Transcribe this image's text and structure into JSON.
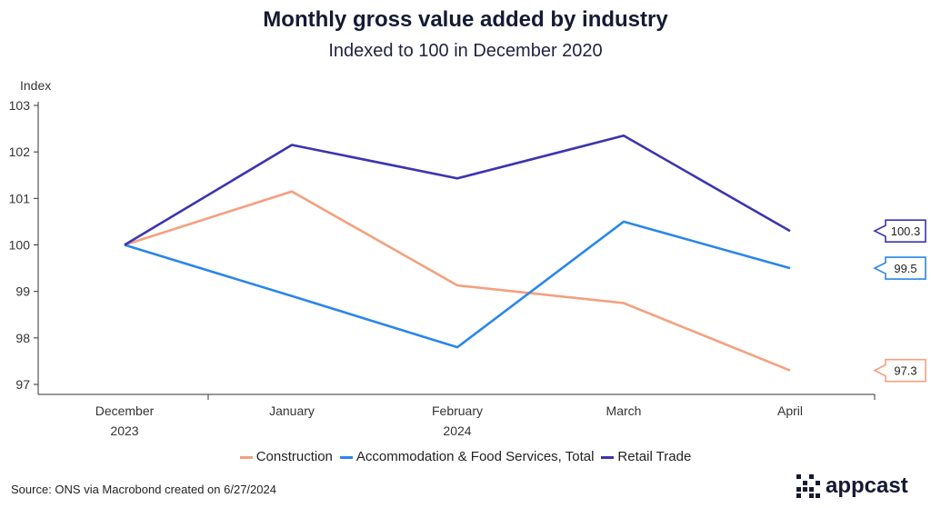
{
  "chart_data": {
    "type": "line",
    "title": "Monthly gross value added by industry",
    "subtitle": "Indexed to 100 in December 2020",
    "ylabel": "Index",
    "xlabel": "",
    "ylim": [
      97,
      103
    ],
    "yticks": [
      97,
      98,
      99,
      100,
      101,
      102,
      103
    ],
    "categories": [
      "December",
      "January",
      "February",
      "March",
      "April"
    ],
    "year_labels": [
      {
        "text": "2023",
        "under": "December"
      },
      {
        "text": "2024",
        "under": "February"
      }
    ],
    "grid": false,
    "legend_position": "bottom",
    "series": [
      {
        "name": "Construction",
        "color": "#f4a07f",
        "values": [
          100.0,
          101.15,
          99.13,
          98.75,
          97.3
        ],
        "end_label": "97.3"
      },
      {
        "name": "Accommodation & Food Services, Total",
        "color": "#2a86e8",
        "values": [
          100.0,
          98.9,
          97.8,
          100.5,
          99.5
        ],
        "end_label": "99.5"
      },
      {
        "name": "Retail Trade",
        "color": "#3b34b0",
        "values": [
          100.0,
          102.15,
          101.43,
          102.35,
          100.3
        ],
        "end_label": "100.3"
      }
    ]
  },
  "source": "Source: ONS via Macrobond created on 6/27/2024",
  "brand": {
    "logo_text": "appcast",
    "color": "#141a33"
  }
}
